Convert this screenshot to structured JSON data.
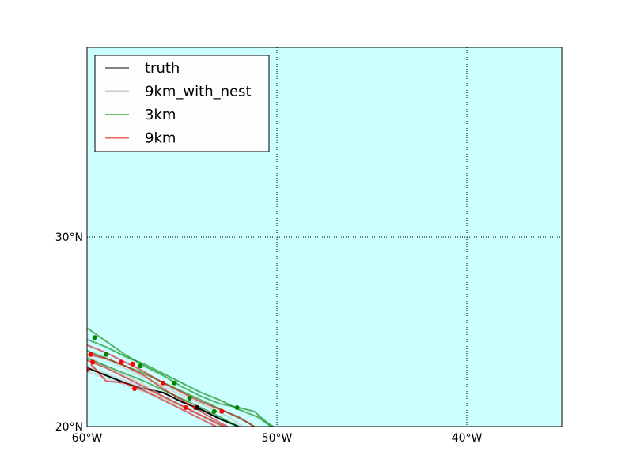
{
  "chart_data": {
    "type": "line",
    "title": "",
    "xlabel": "",
    "ylabel": "",
    "map_background": "#ccffff",
    "xlim": [
      -60,
      -35
    ],
    "ylim": [
      20,
      40
    ],
    "grid": true,
    "legend_position": "top-left",
    "x_ticks": [
      {
        "value": -60,
        "label": "60°W"
      },
      {
        "value": -50,
        "label": "50°W"
      },
      {
        "value": -40,
        "label": "40°W"
      }
    ],
    "y_ticks": [
      {
        "value": 20,
        "label": "20°N"
      },
      {
        "value": 30,
        "label": "30°N"
      }
    ],
    "series": [
      {
        "name": "truth",
        "color": "#808080",
        "tracks": [
          [
            [
              -60.0,
              23.1
            ],
            [
              -59.0,
              22.7
            ],
            [
              -58.0,
              22.3
            ],
            [
              -57.0,
              22.0
            ],
            [
              -56.0,
              21.8
            ],
            [
              -55.0,
              21.3
            ],
            [
              -54.0,
              20.9
            ],
            [
              -53.0,
              20.4
            ],
            [
              -52.0,
              20.0
            ]
          ]
        ]
      },
      {
        "name": "9km_with_nest",
        "color": "#c8c8c8",
        "tracks": [
          [
            [
              -60.0,
              23.7
            ],
            [
              -59.0,
              23.2
            ],
            [
              -58.0,
              22.7
            ],
            [
              -57.0,
              22.2
            ],
            [
              -56.0,
              21.6
            ],
            [
              -55.0,
              21.1
            ],
            [
              -54.0,
              20.6
            ],
            [
              -53.0,
              20.1
            ],
            [
              -52.8,
              20.0
            ]
          ],
          [
            [
              -60.0,
              24.0
            ],
            [
              -58.5,
              23.3
            ],
            [
              -57.0,
              22.6
            ],
            [
              -55.5,
              21.9
            ],
            [
              -54.0,
              21.2
            ],
            [
              -52.5,
              20.5
            ],
            [
              -51.8,
              20.0
            ]
          ],
          [
            [
              -60.0,
              23.2
            ],
            [
              -58.5,
              22.6
            ],
            [
              -57.0,
              22.0
            ],
            [
              -55.5,
              21.3
            ],
            [
              -54.0,
              20.6
            ],
            [
              -53.0,
              20.1
            ],
            [
              -52.8,
              20.0
            ]
          ],
          [
            [
              -60.0,
              22.9
            ],
            [
              -58.8,
              22.5
            ],
            [
              -57.5,
              22.0
            ],
            [
              -56.0,
              21.5
            ],
            [
              -54.5,
              20.8
            ],
            [
              -53.5,
              20.3
            ],
            [
              -53.0,
              20.0
            ]
          ]
        ]
      },
      {
        "name": "3km",
        "color": "#008000",
        "tracks": [
          [
            [
              -60.0,
              25.2
            ],
            [
              -59.0,
              24.5
            ],
            [
              -58.0,
              23.8
            ],
            [
              -57.0,
              23.2
            ],
            [
              -56.0,
              22.7
            ],
            [
              -55.0,
              22.1
            ],
            [
              -54.0,
              21.6
            ],
            [
              -53.0,
              21.2
            ],
            [
              -52.0,
              21.0
            ],
            [
              -51.2,
              20.8
            ],
            [
              -50.5,
              20.2
            ],
            [
              -50.2,
              20.0
            ]
          ],
          [
            [
              -60.0,
              24.6
            ],
            [
              -59.0,
              24.2
            ],
            [
              -58.0,
              23.7
            ],
            [
              -57.0,
              23.3
            ],
            [
              -56.0,
              22.8
            ],
            [
              -55.0,
              22.3
            ],
            [
              -54.0,
              21.8
            ],
            [
              -53.0,
              21.4
            ],
            [
              -52.0,
              20.9
            ],
            [
              -51.0,
              20.5
            ],
            [
              -50.3,
              20.0
            ]
          ],
          [
            [
              -60.0,
              24.0
            ],
            [
              -58.5,
              23.4
            ],
            [
              -57.0,
              22.8
            ],
            [
              -55.5,
              22.1
            ],
            [
              -54.0,
              21.4
            ],
            [
              -52.5,
              20.7
            ],
            [
              -51.5,
              20.2
            ],
            [
              -51.2,
              20.0
            ]
          ],
          [
            [
              -60.0,
              23.6
            ],
            [
              -58.5,
              23.0
            ],
            [
              -57.0,
              22.4
            ],
            [
              -55.5,
              21.7
            ],
            [
              -54.0,
              21.0
            ],
            [
              -52.8,
              20.4
            ],
            [
              -52.0,
              20.0
            ]
          ]
        ]
      },
      {
        "name": "9km",
        "color": "#e00000",
        "tracks": [
          [
            [
              -60.0,
              24.3
            ],
            [
              -59.0,
              23.9
            ],
            [
              -58.0,
              23.4
            ],
            [
              -57.0,
              22.9
            ],
            [
              -56.0,
              22.3
            ],
            [
              -55.0,
              21.8
            ],
            [
              -54.0,
              21.3
            ],
            [
              -53.0,
              20.9
            ],
            [
              -52.0,
              20.5
            ],
            [
              -51.2,
              20.0
            ]
          ],
          [
            [
              -60.0,
              23.5
            ],
            [
              -59.0,
              23.1
            ],
            [
              -58.0,
              22.6
            ],
            [
              -57.0,
              22.1
            ],
            [
              -56.0,
              21.6
            ],
            [
              -55.0,
              21.1
            ],
            [
              -54.0,
              20.6
            ],
            [
              -53.0,
              20.1
            ],
            [
              -52.8,
              20.0
            ]
          ],
          [
            [
              -59.8,
              23.3
            ],
            [
              -59.0,
              22.4
            ],
            [
              -58.0,
              22.3
            ],
            [
              -57.0,
              21.9
            ],
            [
              -56.0,
              21.4
            ],
            [
              -55.0,
              20.9
            ],
            [
              -54.0,
              20.4
            ],
            [
              -53.2,
              20.0
            ]
          ],
          [
            [
              -60.0,
              23.8
            ],
            [
              -59.0,
              23.6
            ],
            [
              -58.0,
              23.2
            ],
            [
              -57.0,
              22.7
            ],
            [
              -56.0,
              22.0
            ],
            [
              -55.0,
              21.4
            ],
            [
              -54.0,
              20.8
            ],
            [
              -53.0,
              20.2
            ],
            [
              -52.6,
              20.0
            ]
          ]
        ]
      }
    ],
    "markers": [
      {
        "series": "3km",
        "color": "#008000",
        "points": [
          [
            -59.6,
            24.7
          ],
          [
            -59.0,
            23.8
          ],
          [
            -57.2,
            23.2
          ],
          [
            -55.4,
            22.3
          ],
          [
            -52.1,
            21.0
          ],
          [
            -53.3,
            20.8
          ],
          [
            -54.6,
            21.5
          ]
        ]
      },
      {
        "series": "9km",
        "color": "#ff0000",
        "points": [
          [
            -60.0,
            23.0
          ],
          [
            -59.8,
            23.8
          ],
          [
            -59.7,
            23.4
          ],
          [
            -58.2,
            23.4
          ],
          [
            -57.6,
            23.3
          ],
          [
            -57.5,
            22.0
          ],
          [
            -56.0,
            22.3
          ],
          [
            -54.8,
            21.0
          ],
          [
            -54.3,
            21.0
          ],
          [
            -52.9,
            20.8
          ]
        ]
      },
      {
        "series": "truth",
        "color": "#000000",
        "points": [
          [
            -54.2,
            21.0
          ]
        ]
      }
    ],
    "legend": [
      {
        "label": "truth",
        "color": "#808080"
      },
      {
        "label": "9km_with_nest",
        "color": "#c8c8c8"
      },
      {
        "label": "3km",
        "color": "#66bb66"
      },
      {
        "label": "9km",
        "color": "#ee6666"
      }
    ]
  }
}
